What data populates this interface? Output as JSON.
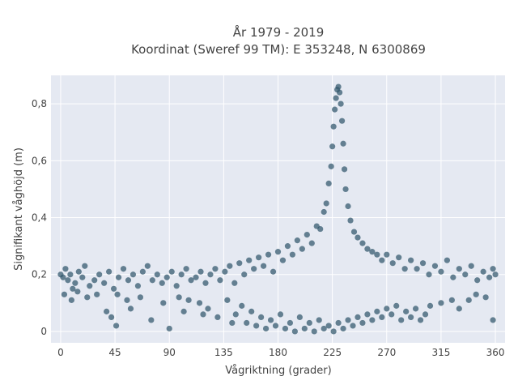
{
  "chart_data": {
    "type": "scatter",
    "title_line1": "År 1979 - 2019",
    "title_line2": "Koordinat (Sweref 99 TM): E 353248, N 6300869",
    "xlabel": "Vågriktning (grader)",
    "ylabel": "Signifikant våghöjd (m)",
    "xlim": [
      -8,
      368
    ],
    "ylim": [
      -0.04,
      0.9
    ],
    "x_ticks": [
      0,
      45,
      90,
      135,
      180,
      225,
      270,
      315,
      360
    ],
    "x_tick_labels": [
      "0",
      "45",
      "90",
      "135",
      "180",
      "225",
      "270",
      "315",
      "360"
    ],
    "y_ticks": [
      0,
      0.2,
      0.4,
      0.6,
      0.8
    ],
    "y_tick_labels": [
      "0",
      "0,2",
      "0,4",
      "0,6",
      "0,8"
    ],
    "grid": true,
    "legend": "none",
    "plot_background": "#e5e9f2",
    "marker_color": "#31566b",
    "series": [
      {
        "points": [
          [
            0,
            0.2
          ],
          [
            2,
            0.19
          ],
          [
            4,
            0.22
          ],
          [
            6,
            0.18
          ],
          [
            8,
            0.2
          ],
          [
            10,
            0.15
          ],
          [
            12,
            0.17
          ],
          [
            15,
            0.21
          ],
          [
            18,
            0.19
          ],
          [
            20,
            0.23
          ],
          [
            24,
            0.16
          ],
          [
            28,
            0.18
          ],
          [
            32,
            0.2
          ],
          [
            36,
            0.17
          ],
          [
            40,
            0.21
          ],
          [
            44,
            0.15
          ],
          [
            48,
            0.19
          ],
          [
            52,
            0.22
          ],
          [
            56,
            0.18
          ],
          [
            60,
            0.2
          ],
          [
            64,
            0.16
          ],
          [
            68,
            0.21
          ],
          [
            72,
            0.23
          ],
          [
            76,
            0.18
          ],
          [
            80,
            0.2
          ],
          [
            84,
            0.17
          ],
          [
            88,
            0.19
          ],
          [
            92,
            0.21
          ],
          [
            96,
            0.16
          ],
          [
            100,
            0.2
          ],
          [
            104,
            0.22
          ],
          [
            108,
            0.18
          ],
          [
            112,
            0.19
          ],
          [
            116,
            0.21
          ],
          [
            120,
            0.17
          ],
          [
            124,
            0.2
          ],
          [
            128,
            0.22
          ],
          [
            132,
            0.18
          ],
          [
            136,
            0.21
          ],
          [
            140,
            0.23
          ],
          [
            144,
            0.17
          ],
          [
            148,
            0.24
          ],
          [
            152,
            0.2
          ],
          [
            156,
            0.25
          ],
          [
            160,
            0.22
          ],
          [
            164,
            0.26
          ],
          [
            168,
            0.23
          ],
          [
            172,
            0.27
          ],
          [
            176,
            0.21
          ],
          [
            180,
            0.28
          ],
          [
            184,
            0.25
          ],
          [
            188,
            0.3
          ],
          [
            192,
            0.27
          ],
          [
            196,
            0.32
          ],
          [
            200,
            0.29
          ],
          [
            204,
            0.34
          ],
          [
            208,
            0.31
          ],
          [
            212,
            0.37
          ],
          [
            215,
            0.36
          ],
          [
            218,
            0.42
          ],
          [
            220,
            0.45
          ],
          [
            222,
            0.52
          ],
          [
            224,
            0.58
          ],
          [
            225,
            0.65
          ],
          [
            226,
            0.72
          ],
          [
            227,
            0.78
          ],
          [
            228,
            0.82
          ],
          [
            229,
            0.85
          ],
          [
            230,
            0.86
          ],
          [
            231,
            0.84
          ],
          [
            232,
            0.8
          ],
          [
            233,
            0.74
          ],
          [
            234,
            0.66
          ],
          [
            235,
            0.57
          ],
          [
            236,
            0.5
          ],
          [
            238,
            0.44
          ],
          [
            240,
            0.39
          ],
          [
            243,
            0.35
          ],
          [
            246,
            0.33
          ],
          [
            250,
            0.31
          ],
          [
            254,
            0.29
          ],
          [
            258,
            0.28
          ],
          [
            262,
            0.27
          ],
          [
            266,
            0.25
          ],
          [
            270,
            0.27
          ],
          [
            275,
            0.24
          ],
          [
            280,
            0.26
          ],
          [
            285,
            0.22
          ],
          [
            290,
            0.25
          ],
          [
            295,
            0.22
          ],
          [
            300,
            0.24
          ],
          [
            305,
            0.2
          ],
          [
            310,
            0.23
          ],
          [
            315,
            0.21
          ],
          [
            320,
            0.25
          ],
          [
            325,
            0.19
          ],
          [
            330,
            0.22
          ],
          [
            335,
            0.2
          ],
          [
            340,
            0.23
          ],
          [
            345,
            0.18
          ],
          [
            350,
            0.21
          ],
          [
            355,
            0.19
          ],
          [
            358,
            0.22
          ],
          [
            360,
            0.2
          ],
          [
            3,
            0.13
          ],
          [
            9,
            0.11
          ],
          [
            14,
            0.14
          ],
          [
            22,
            0.12
          ],
          [
            30,
            0.13
          ],
          [
            38,
            0.07
          ],
          [
            42,
            0.05
          ],
          [
            46,
            0.02
          ],
          [
            47,
            0.13
          ],
          [
            55,
            0.11
          ],
          [
            66,
            0.12
          ],
          [
            75,
            0.04
          ],
          [
            85,
            0.1
          ],
          [
            90,
            0.01
          ],
          [
            98,
            0.12
          ],
          [
            106,
            0.11
          ],
          [
            115,
            0.1
          ],
          [
            122,
            0.08
          ],
          [
            130,
            0.05
          ],
          [
            138,
            0.11
          ],
          [
            145,
            0.06
          ],
          [
            150,
            0.09
          ],
          [
            154,
            0.03
          ],
          [
            158,
            0.07
          ],
          [
            162,
            0.02
          ],
          [
            166,
            0.05
          ],
          [
            170,
            0.01
          ],
          [
            174,
            0.04
          ],
          [
            178,
            0.02
          ],
          [
            182,
            0.06
          ],
          [
            186,
            0.01
          ],
          [
            190,
            0.03
          ],
          [
            194,
            0.0
          ],
          [
            198,
            0.05
          ],
          [
            202,
            0.01
          ],
          [
            206,
            0.03
          ],
          [
            210,
            0.0
          ],
          [
            214,
            0.04
          ],
          [
            218,
            0.01
          ],
          [
            222,
            0.02
          ],
          [
            226,
            0.0
          ],
          [
            230,
            0.03
          ],
          [
            234,
            0.01
          ],
          [
            238,
            0.04
          ],
          [
            242,
            0.02
          ],
          [
            246,
            0.05
          ],
          [
            250,
            0.03
          ],
          [
            254,
            0.06
          ],
          [
            258,
            0.04
          ],
          [
            262,
            0.07
          ],
          [
            266,
            0.05
          ],
          [
            270,
            0.08
          ],
          [
            274,
            0.06
          ],
          [
            278,
            0.09
          ],
          [
            282,
            0.04
          ],
          [
            286,
            0.07
          ],
          [
            290,
            0.05
          ],
          [
            294,
            0.08
          ],
          [
            298,
            0.04
          ],
          [
            302,
            0.06
          ],
          [
            306,
            0.09
          ],
          [
            315,
            0.1
          ],
          [
            324,
            0.11
          ],
          [
            330,
            0.08
          ],
          [
            338,
            0.11
          ],
          [
            344,
            0.13
          ],
          [
            352,
            0.12
          ],
          [
            358,
            0.04
          ],
          [
            58,
            0.08
          ],
          [
            102,
            0.07
          ],
          [
            118,
            0.06
          ],
          [
            142,
            0.03
          ]
        ]
      }
    ]
  }
}
